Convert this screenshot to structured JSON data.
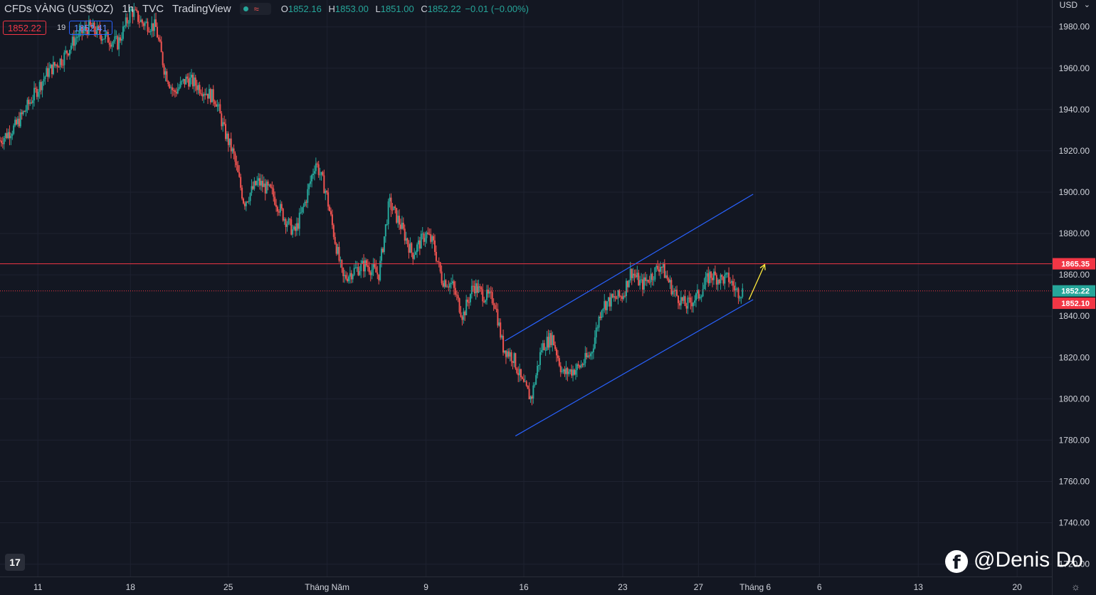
{
  "header": {
    "symbol": "CFDs VÀNG (US$/OZ)",
    "interval": "1h",
    "exchange": "TVC",
    "source": "TradingView",
    "wave_icon": "≈",
    "ohlc": {
      "o_label": "O",
      "o": "1852.16",
      "h_label": "H",
      "h": "1853.00",
      "l_label": "L",
      "l": "1851.00",
      "c_label": "C",
      "c": "1852.22",
      "change": "−0.01 (−0.00%)"
    }
  },
  "trade": {
    "sell": "1852.22",
    "spread": "19",
    "buy": "1852.41"
  },
  "axis": {
    "currency": "USD",
    "caret": "⌄"
  },
  "watermark": {
    "fb_icon": "f",
    "text": "@Denis Do"
  },
  "settings_icon": "☼",
  "logo": "17",
  "colors": {
    "background": "#131722",
    "up": "#26a69a",
    "down": "#ef5350",
    "channel": "#2962ff",
    "resistance": "#f23645",
    "arrow": "#ffeb3b",
    "grid": "#1e2230"
  },
  "chart_data": {
    "type": "candlestick",
    "ylim": [
      1714,
      1993
    ],
    "y_ticks": [
      1720,
      1740,
      1760,
      1780,
      1800,
      1820,
      1840,
      1860,
      1880,
      1900,
      1920,
      1940,
      1960,
      1980
    ],
    "x_ticks": [
      {
        "label": "11",
        "pos": 0.036
      },
      {
        "label": "18",
        "pos": 0.124
      },
      {
        "label": "25",
        "pos": 0.217
      },
      {
        "label": "Tháng Năm",
        "pos": 0.311
      },
      {
        "label": "9",
        "pos": 0.405
      },
      {
        "label": "16",
        "pos": 0.498
      },
      {
        "label": "23",
        "pos": 0.592
      },
      {
        "label": "27",
        "pos": 0.664
      },
      {
        "label": "Tháng 6",
        "pos": 0.718
      },
      {
        "label": "6",
        "pos": 0.779
      },
      {
        "label": "13",
        "pos": 0.873
      },
      {
        "label": "20",
        "pos": 0.967
      }
    ],
    "price_path": [
      [
        0.0,
        1925
      ],
      [
        0.015,
        1932
      ],
      [
        0.03,
        1945
      ],
      [
        0.045,
        1958
      ],
      [
        0.06,
        1965
      ],
      [
        0.072,
        1975
      ],
      [
        0.085,
        1980
      ],
      [
        0.1,
        1975
      ],
      [
        0.112,
        1972
      ],
      [
        0.125,
        1988
      ],
      [
        0.135,
        1982
      ],
      [
        0.148,
        1980
      ],
      [
        0.156,
        1960
      ],
      [
        0.165,
        1948
      ],
      [
        0.178,
        1955
      ],
      [
        0.192,
        1950
      ],
      [
        0.205,
        1945
      ],
      [
        0.213,
        1930
      ],
      [
        0.222,
        1918
      ],
      [
        0.232,
        1895
      ],
      [
        0.245,
        1905
      ],
      [
        0.258,
        1900
      ],
      [
        0.27,
        1888
      ],
      [
        0.28,
        1880
      ],
      [
        0.29,
        1895
      ],
      [
        0.3,
        1915
      ],
      [
        0.31,
        1900
      ],
      [
        0.318,
        1878
      ],
      [
        0.326,
        1858
      ],
      [
        0.336,
        1862
      ],
      [
        0.348,
        1865
      ],
      [
        0.36,
        1860
      ],
      [
        0.37,
        1895
      ],
      [
        0.38,
        1885
      ],
      [
        0.392,
        1870
      ],
      [
        0.405,
        1880
      ],
      [
        0.412,
        1875
      ],
      [
        0.42,
        1858
      ],
      [
        0.43,
        1855
      ],
      [
        0.44,
        1840
      ],
      [
        0.45,
        1855
      ],
      [
        0.46,
        1850
      ],
      [
        0.47,
        1848
      ],
      [
        0.478,
        1825
      ],
      [
        0.488,
        1820
      ],
      [
        0.496,
        1808
      ],
      [
        0.505,
        1800
      ],
      [
        0.515,
        1825
      ],
      [
        0.525,
        1830
      ],
      [
        0.535,
        1812
      ],
      [
        0.55,
        1815
      ],
      [
        0.562,
        1822
      ],
      [
        0.572,
        1845
      ],
      [
        0.582,
        1848
      ],
      [
        0.592,
        1850
      ],
      [
        0.6,
        1862
      ],
      [
        0.61,
        1855
      ],
      [
        0.62,
        1860
      ],
      [
        0.628,
        1865
      ],
      [
        0.64,
        1852
      ],
      [
        0.652,
        1845
      ],
      [
        0.664,
        1850
      ],
      [
        0.675,
        1860
      ],
      [
        0.685,
        1858
      ],
      [
        0.693,
        1858
      ],
      [
        0.7,
        1852
      ],
      [
        0.707,
        1852
      ]
    ],
    "price_lines": [
      {
        "price": 1865.35,
        "label": "1865.35",
        "style": "solid",
        "color": "#f23645"
      },
      {
        "price": 1852.22,
        "label": "1852.22",
        "style": "dotted",
        "color": "#f23645",
        "box": "#26a69a"
      },
      {
        "price": 1852.1,
        "label": "1852.10",
        "style": "none",
        "color": "#f23645",
        "box": "#f23645"
      }
    ],
    "channel": {
      "upper": [
        [
          0.48,
          1828
        ],
        [
          0.716,
          1899
        ]
      ],
      "lower": [
        [
          0.49,
          1782
        ],
        [
          0.716,
          1848
        ]
      ]
    },
    "arrow": [
      [
        0.712,
        1848
      ],
      [
        0.727,
        1865
      ]
    ]
  }
}
